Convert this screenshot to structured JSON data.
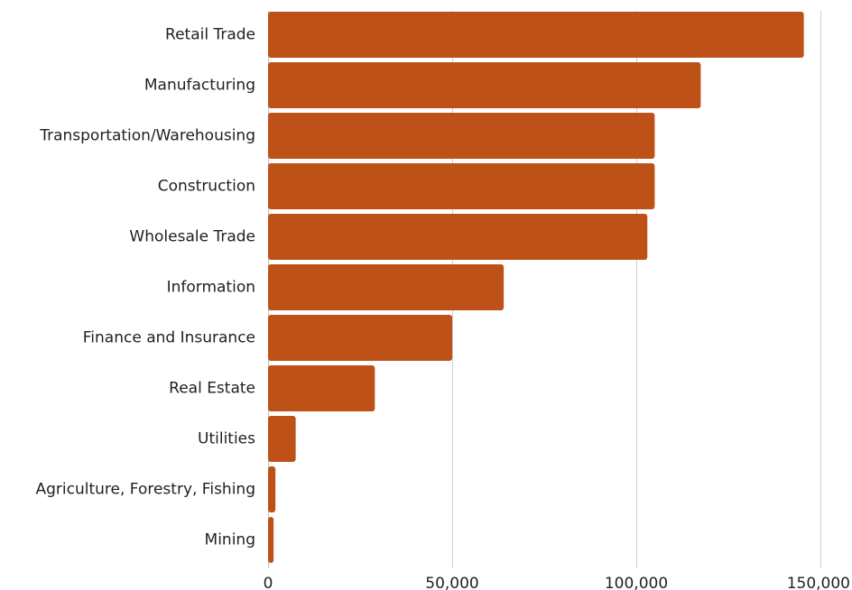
{
  "chart_data": {
    "type": "bar",
    "orientation": "horizontal",
    "categories": [
      "Retail Trade",
      "Manufacturing",
      "Transportation/Warehousing",
      "Construction",
      "Wholesale Trade",
      "Information",
      "Finance and Insurance",
      "Real Estate",
      "Utilities",
      "Agriculture, Forestry, Fishing",
      "Mining"
    ],
    "values": [
      145500,
      117500,
      105000,
      105000,
      103000,
      64000,
      50000,
      29000,
      7500,
      2000,
      1500
    ],
    "xlim": [
      0,
      150000
    ],
    "xticks": [
      0,
      50000,
      100000,
      150000
    ],
    "xtick_labels": [
      "0",
      "50,000",
      "100,000",
      "150,000"
    ],
    "grid": true,
    "bar_color": "#BE5118",
    "title": "",
    "xlabel": "",
    "ylabel": ""
  }
}
